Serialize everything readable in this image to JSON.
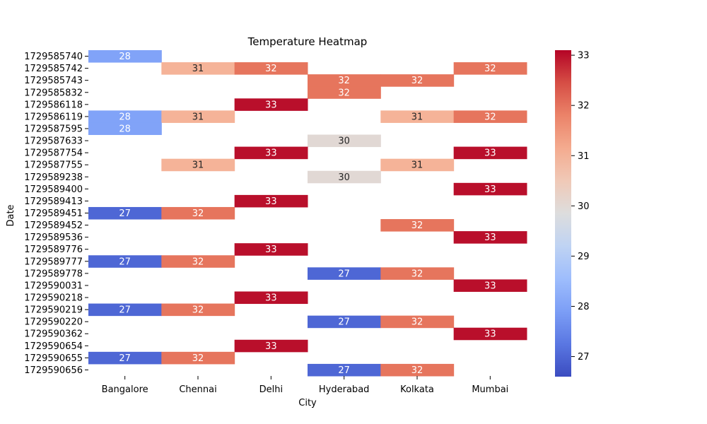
{
  "chart_data": {
    "type": "heatmap",
    "title": "Temperature Heatmap",
    "xlabel": "City",
    "ylabel": "Date",
    "x_categories": [
      "Bangalore",
      "Chennai",
      "Delhi",
      "Hyderabad",
      "Kolkata",
      "Mumbai"
    ],
    "y_categories": [
      "1729585740",
      "1729585742",
      "1729585743",
      "1729585832",
      "1729586118",
      "1729586119",
      "1729587595",
      "1729587633",
      "1729587754",
      "1729587755",
      "1729589238",
      "1729589400",
      "1729589413",
      "1729589451",
      "1729589452",
      "1729589536",
      "1729589776",
      "1729589777",
      "1729589778",
      "1729590031",
      "1729590218",
      "1729590219",
      "1729590220",
      "1729590362",
      "1729590654",
      "1729590655",
      "1729590656"
    ],
    "values": [
      [
        28,
        null,
        null,
        null,
        null,
        null
      ],
      [
        null,
        31,
        32,
        null,
        null,
        32
      ],
      [
        null,
        null,
        null,
        32,
        32,
        null
      ],
      [
        null,
        null,
        null,
        32,
        null,
        null
      ],
      [
        null,
        null,
        33,
        null,
        null,
        null
      ],
      [
        28,
        31,
        null,
        null,
        31,
        32
      ],
      [
        28,
        null,
        null,
        null,
        null,
        null
      ],
      [
        null,
        null,
        null,
        30,
        null,
        null
      ],
      [
        null,
        null,
        33,
        null,
        null,
        33
      ],
      [
        null,
        31,
        null,
        null,
        31,
        null
      ],
      [
        null,
        null,
        null,
        30,
        null,
        null
      ],
      [
        null,
        null,
        null,
        null,
        null,
        33
      ],
      [
        null,
        null,
        33,
        null,
        null,
        null
      ],
      [
        27,
        32,
        null,
        null,
        null,
        null
      ],
      [
        null,
        null,
        null,
        null,
        32,
        null
      ],
      [
        null,
        null,
        null,
        null,
        null,
        33
      ],
      [
        null,
        null,
        33,
        null,
        null,
        null
      ],
      [
        27,
        32,
        null,
        null,
        null,
        null
      ],
      [
        null,
        null,
        null,
        27,
        32,
        null
      ],
      [
        null,
        null,
        null,
        null,
        null,
        33
      ],
      [
        null,
        null,
        33,
        null,
        null,
        null
      ],
      [
        27,
        32,
        null,
        null,
        null,
        null
      ],
      [
        null,
        null,
        null,
        27,
        32,
        null
      ],
      [
        null,
        null,
        null,
        null,
        null,
        33
      ],
      [
        null,
        null,
        33,
        null,
        null,
        null
      ],
      [
        27,
        32,
        null,
        null,
        null,
        null
      ],
      [
        null,
        null,
        null,
        27,
        32,
        null
      ]
    ],
    "colormap": "coolwarm",
    "colorbar": {
      "min": 26.6,
      "max": 33.1,
      "ticks": [
        27,
        28,
        29,
        30,
        31,
        32,
        33
      ]
    }
  }
}
